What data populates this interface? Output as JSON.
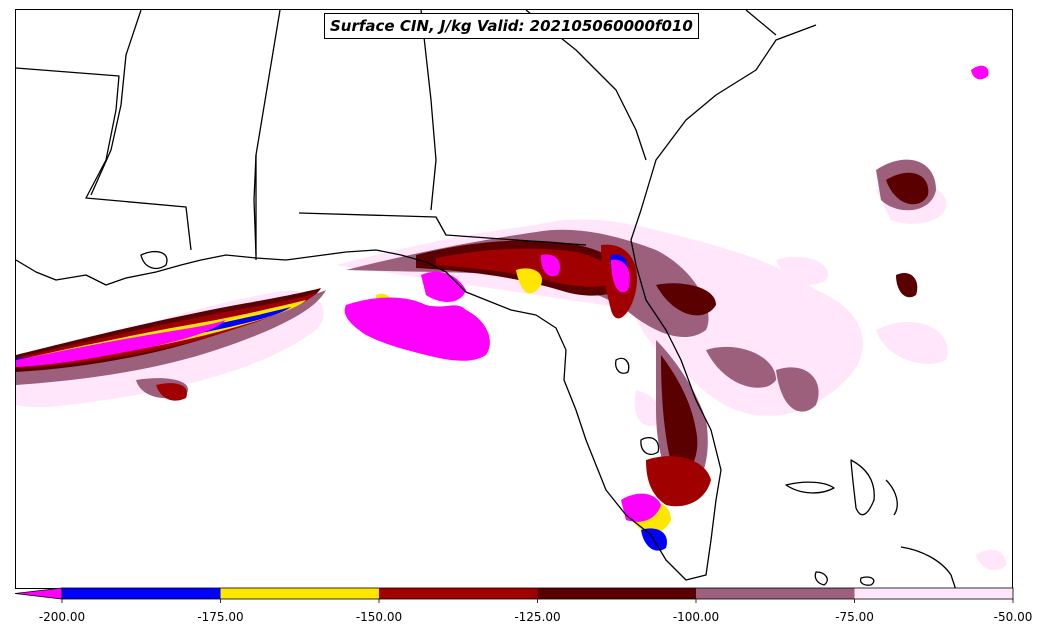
{
  "title": "Surface CIN, J/kg Valid: 202105060000f010",
  "colorbar": {
    "extend": "min",
    "under_color": "#ff00ff",
    "bins": [
      {
        "from": -200,
        "to": -175,
        "color": "#0000ff"
      },
      {
        "from": -175,
        "to": -150,
        "color": "#ffe600"
      },
      {
        "from": -150,
        "to": -125,
        "color": "#a00000"
      },
      {
        "from": -125,
        "to": -100,
        "color": "#5a0000"
      },
      {
        "from": -100,
        "to": -75,
        "color": "#9c5f7c"
      },
      {
        "from": -75,
        "to": -50,
        "color": "#ffe6fa"
      }
    ],
    "tick_labels": [
      "-200.00",
      "-175.00",
      "-150.00",
      "-125.00",
      "-100.00",
      "-75.00",
      "-50.00"
    ]
  }
}
